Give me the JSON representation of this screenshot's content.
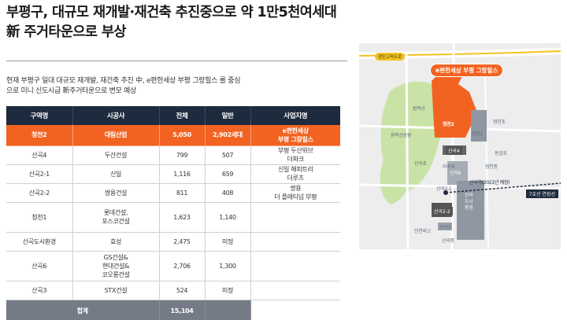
{
  "headline": {
    "line1": "부평구, 대규모 재개발·재건축 추진중으로 약 1만5천여세대",
    "line2": "新 주거타운으로 부상"
  },
  "intro": {
    "line1": "현재 부평구 일대 대규모 재개발, 재건축 추진 中, e편한세상 부평 그랑힐스 를 중심",
    "line2": "으로 미니 신도시급 新주거타운으로 변모 예상"
  },
  "table": {
    "headers": [
      "구역명",
      "시공사",
      "전체",
      "일반",
      "사업지명"
    ],
    "highlight": {
      "zone": "청천2",
      "builder": "대림산업",
      "total": "5,050",
      "general": "2,902세대",
      "project_line1": "e편한세상",
      "project_line2": "부평 그랑힐스"
    },
    "rows": [
      {
        "zone": "산곡4",
        "builder_lines": [
          "두산건설"
        ],
        "total": "799",
        "general": "507",
        "project_lines": [
          "부평 두산위브",
          "더파크"
        ]
      },
      {
        "zone": "산곡2-1",
        "builder_lines": [
          "신일"
        ],
        "total": "1,116",
        "general": "659",
        "project_lines": [
          "신일 해피트리",
          "더루츠"
        ]
      },
      {
        "zone": "산곡2-2",
        "builder_lines": [
          "쌍용건설"
        ],
        "total": "811",
        "general": "408",
        "project_lines": [
          "쌍용",
          "더 플래티넘 부평"
        ]
      },
      {
        "zone": "청천1",
        "builder_lines": [
          "롯데건설,",
          "포스코건설"
        ],
        "total": "1,623",
        "general": "1,140",
        "project_lines": []
      },
      {
        "zone": "산곡도시환경",
        "builder_lines": [
          "효성"
        ],
        "total": "2,475",
        "general": "미정",
        "project_lines": []
      },
      {
        "zone": "산곡6",
        "builder_lines": [
          "GS건설&",
          "현대건설&",
          "코오롱건설"
        ],
        "total": "2,706",
        "general": "1,300",
        "project_lines": []
      },
      {
        "zone": "산곡3",
        "builder_lines": [
          "STX건설"
        ],
        "total": "524",
        "general": "미정",
        "project_lines": []
      }
    ],
    "total_row": {
      "label": "합계",
      "value": "15,104"
    }
  },
  "map": {
    "road_tag": "경인고속도로",
    "callout": "e편한세상 부평 그랑힐스",
    "labels": {
      "mountain": "원적산",
      "cheongcheon2": "청천2",
      "cheongcheon1": "청천1",
      "sangok4": "산곡4",
      "sangok6": "산곡6",
      "sangok_env_1": "산곡",
      "sangok_env_2": "도시",
      "sangok_env_3": "환경",
      "sangok21": "산곡2-1",
      "sangok22": "산곡2-2",
      "sangok3": "산곡3",
      "school1": "원적선공원",
      "school2": "청천초",
      "school3": "동암초",
      "school4": "마곡초",
      "school5": "청천중",
      "school6": "산곡초",
      "school7": "인천외고",
      "school8": "산곡중",
      "station": "산곡역(2021년 예정)",
      "line7": "7호선 연장선"
    }
  }
}
